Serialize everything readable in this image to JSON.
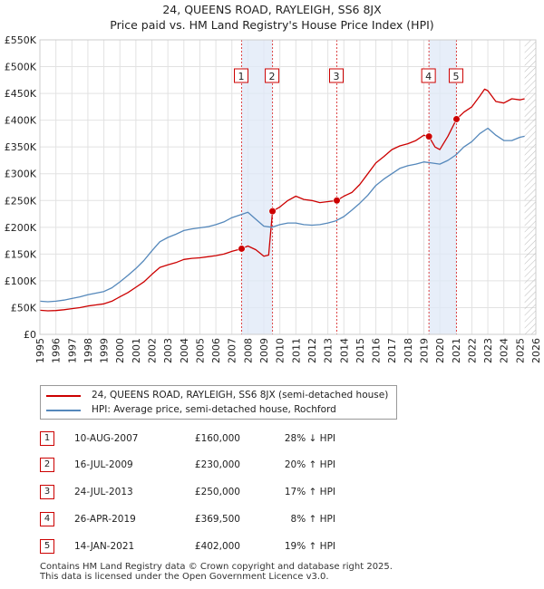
{
  "chart_data": {
    "type": "line",
    "title": "24, QUEENS ROAD, RAYLEIGH, SS6 8JX",
    "subtitle": "Price paid vs. HM Land Registry's House Price Index (HPI)",
    "ylim": [
      0,
      550000
    ],
    "xlim": [
      1995,
      2026
    ],
    "y_ticks": [
      0,
      50000,
      100000,
      150000,
      200000,
      250000,
      300000,
      350000,
      400000,
      450000,
      500000,
      550000
    ],
    "y_tick_labels": [
      "£0",
      "£50K",
      "£100K",
      "£150K",
      "£200K",
      "£250K",
      "£300K",
      "£350K",
      "£400K",
      "£450K",
      "£500K",
      "£550K"
    ],
    "x_ticks": [
      "1995",
      "1996",
      "1997",
      "1998",
      "1999",
      "2000",
      "2001",
      "2002",
      "2003",
      "2004",
      "2005",
      "2006",
      "2007",
      "2008",
      "2009",
      "2010",
      "2011",
      "2012",
      "2013",
      "2014",
      "2015",
      "2016",
      "2017",
      "2018",
      "2019",
      "2020",
      "2021",
      "2022",
      "2023",
      "2024",
      "2025",
      "2026"
    ],
    "grid": true,
    "series": [
      {
        "name": "24, QUEENS ROAD, RAYLEIGH, SS6 8JX (semi-detached house)",
        "color": "#cc0000",
        "x": [
          1995.0,
          1995.5,
          1996.0,
          1996.5,
          1997.0,
          1997.5,
          1998.0,
          1998.5,
          1999.0,
          1999.5,
          2000.0,
          2000.5,
          2001.0,
          2001.5,
          2002.0,
          2002.5,
          2003.0,
          2003.5,
          2004.0,
          2004.5,
          2005.0,
          2005.5,
          2006.0,
          2006.5,
          2007.0,
          2007.61,
          2008.0,
          2008.5,
          2009.0,
          2009.3,
          2009.54,
          2010.0,
          2010.5,
          2011.0,
          2011.5,
          2012.0,
          2012.5,
          2013.0,
          2013.56,
          2014.0,
          2014.5,
          2015.0,
          2015.5,
          2016.0,
          2016.5,
          2017.0,
          2017.5,
          2018.0,
          2018.5,
          2019.0,
          2019.32,
          2019.7,
          2020.0,
          2020.5,
          2021.04,
          2021.5,
          2022.0,
          2022.5,
          2022.8,
          2023.0,
          2023.5,
          2024.0,
          2024.5,
          2025.0,
          2025.3
        ],
        "y": [
          45000,
          44000,
          44500,
          46000,
          48000,
          50000,
          53000,
          55000,
          57000,
          62000,
          70000,
          78000,
          88000,
          98000,
          112000,
          125000,
          130000,
          134000,
          140000,
          142000,
          143000,
          145000,
          147000,
          150000,
          155000,
          160000,
          165000,
          158000,
          146000,
          148000,
          230000,
          238000,
          250000,
          258000,
          252000,
          250000,
          246000,
          248000,
          250000,
          258000,
          265000,
          280000,
          300000,
          320000,
          332000,
          345000,
          352000,
          356000,
          362000,
          372000,
          369500,
          350000,
          345000,
          370000,
          402000,
          415000,
          425000,
          445000,
          458000,
          455000,
          435000,
          432000,
          440000,
          438000,
          440000
        ]
      },
      {
        "name": "HPI: Average price, semi-detached house, Rochford",
        "color": "#5588bb",
        "x": [
          1995.0,
          1995.5,
          1996.0,
          1996.5,
          1997.0,
          1997.5,
          1998.0,
          1998.5,
          1999.0,
          1999.5,
          2000.0,
          2000.5,
          2001.0,
          2001.5,
          2002.0,
          2002.5,
          2003.0,
          2003.5,
          2004.0,
          2004.5,
          2005.0,
          2005.5,
          2006.0,
          2006.5,
          2007.0,
          2007.5,
          2008.0,
          2008.5,
          2009.0,
          2009.5,
          2010.0,
          2010.5,
          2011.0,
          2011.5,
          2012.0,
          2012.5,
          2013.0,
          2013.5,
          2014.0,
          2014.5,
          2015.0,
          2015.5,
          2016.0,
          2016.5,
          2017.0,
          2017.5,
          2018.0,
          2018.5,
          2019.0,
          2019.5,
          2020.0,
          2020.5,
          2021.0,
          2021.5,
          2022.0,
          2022.5,
          2023.0,
          2023.5,
          2024.0,
          2024.5,
          2025.0,
          2025.3
        ],
        "y": [
          62000,
          61000,
          62000,
          64000,
          67000,
          70000,
          74000,
          77000,
          80000,
          87000,
          98000,
          110000,
          123000,
          138000,
          156000,
          173000,
          181000,
          187000,
          194000,
          197000,
          199000,
          201000,
          205000,
          210000,
          218000,
          223000,
          228000,
          215000,
          202000,
          200000,
          205000,
          208000,
          208000,
          205000,
          204000,
          205000,
          208000,
          212000,
          220000,
          232000,
          245000,
          260000,
          278000,
          290000,
          300000,
          310000,
          315000,
          318000,
          322000,
          320000,
          318000,
          325000,
          335000,
          350000,
          360000,
          375000,
          385000,
          372000,
          362000,
          362000,
          368000,
          370000
        ]
      }
    ],
    "transactions": [
      {
        "label": "1",
        "date": "10-AUG-2007",
        "x": 2007.61,
        "price": 160000,
        "price_text": "£160,000",
        "diff": "28% ↓ HPI"
      },
      {
        "label": "2",
        "date": "16-JUL-2009",
        "x": 2009.54,
        "price": 230000,
        "price_text": "£230,000",
        "diff": "20% ↑ HPI"
      },
      {
        "label": "3",
        "date": "24-JUL-2013",
        "x": 2013.56,
        "price": 250000,
        "price_text": "£250,000",
        "diff": "17% ↑ HPI"
      },
      {
        "label": "4",
        "date": "26-APR-2019",
        "x": 2019.32,
        "price": 369500,
        "price_text": "£369,500",
        "diff": "8% ↑ HPI"
      },
      {
        "label": "5",
        "date": "14-JAN-2021",
        "x": 2021.04,
        "price": 402000,
        "price_text": "£402,000",
        "diff": "19% ↑ HPI"
      }
    ],
    "shaded_periods": [
      [
        2007.61,
        2009.54
      ],
      [
        2019.32,
        2021.04
      ]
    ],
    "forecast_hatch_from": 2025.3
  },
  "legend": {
    "items": [
      {
        "label": "24, QUEENS ROAD, RAYLEIGH, SS6 8JX (semi-detached house)",
        "color": "#cc0000"
      },
      {
        "label": "HPI: Average price, semi-detached house, Rochford",
        "color": "#5588bb"
      }
    ]
  },
  "footer": {
    "line1": "Contains HM Land Registry data © Crown copyright and database right 2025.",
    "line2": "This data is licensed under the Open Government Licence v3.0."
  }
}
